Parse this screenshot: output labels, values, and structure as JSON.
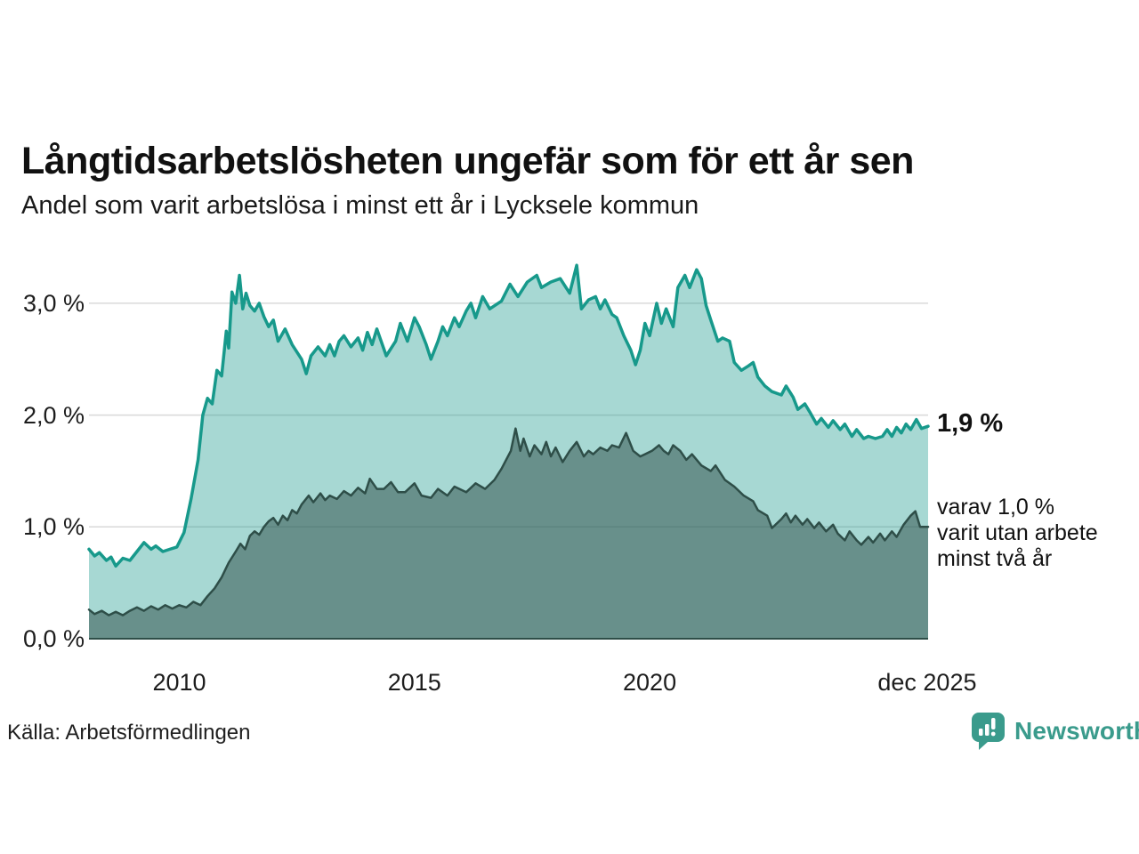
{
  "header": {
    "title": "Långtidsarbetslösheten ungefär som för ett år sen",
    "subtitle": "Andel som varit arbetslösa i minst ett år i Lycksele kommun"
  },
  "annotations": {
    "latest_total": "1,9 %",
    "latest_sub_lines": [
      "varav 1,0 %",
      "varit utan arbete",
      "minst två år"
    ]
  },
  "footer": {
    "source": "Källa: Arbetsförmedlingen",
    "brand": "Newsworthy"
  },
  "colors": {
    "line_total": "#17998b",
    "fill_total": "rgba(23,153,139,0.38)",
    "line_twoyear": "#2e4e48",
    "fill_twoyear": "rgba(46,78,72,0.52)",
    "gridline": "#d9d9d9",
    "baseline": "#2e4e48",
    "brand_teal": "#3a9b8c"
  },
  "chart_data": {
    "type": "area",
    "title": "Långtidsarbetslösheten ungefär som för ett år sen",
    "subtitle": "Andel som varit arbetslösa i minst ett år i Lycksele kommun",
    "unit": "%",
    "x_axis": {
      "ticks": [
        {
          "t": 2010,
          "label": "2010"
        },
        {
          "t": 2015,
          "label": "2015"
        },
        {
          "t": 2020,
          "label": "2020"
        },
        {
          "t": 2025.9,
          "label": "dec 2025"
        }
      ],
      "range": [
        2008.08,
        2025.92
      ]
    },
    "y_axis": {
      "ticks": [
        {
          "v": 3,
          "label": "3,0 %"
        },
        {
          "v": 2,
          "label": "2,0 %"
        },
        {
          "v": 1,
          "label": "1,0 %"
        },
        {
          "v": 0,
          "label": "0,0 %"
        }
      ],
      "range": [
        0,
        3.5
      ],
      "grid": true
    },
    "legend_position": "none",
    "series": [
      {
        "name": "Andel arbetslösa minst ett år",
        "end_label": "1,9 %",
        "end_value": 1.9,
        "points": [
          [
            2008.08,
            0.8
          ],
          [
            2008.2,
            0.74
          ],
          [
            2008.3,
            0.77
          ],
          [
            2008.45,
            0.7
          ],
          [
            2008.55,
            0.73
          ],
          [
            2008.65,
            0.65
          ],
          [
            2008.8,
            0.72
          ],
          [
            2008.95,
            0.7
          ],
          [
            2009.1,
            0.78
          ],
          [
            2009.25,
            0.86
          ],
          [
            2009.4,
            0.8
          ],
          [
            2009.5,
            0.83
          ],
          [
            2009.65,
            0.78
          ],
          [
            2009.8,
            0.8
          ],
          [
            2009.95,
            0.82
          ],
          [
            2010.1,
            0.95
          ],
          [
            2010.25,
            1.25
          ],
          [
            2010.4,
            1.6
          ],
          [
            2010.5,
            2.0
          ],
          [
            2010.6,
            2.15
          ],
          [
            2010.7,
            2.1
          ],
          [
            2010.8,
            2.4
          ],
          [
            2010.9,
            2.35
          ],
          [
            2011.0,
            2.75
          ],
          [
            2011.05,
            2.6
          ],
          [
            2011.12,
            3.1
          ],
          [
            2011.2,
            3.0
          ],
          [
            2011.28,
            3.25
          ],
          [
            2011.35,
            2.95
          ],
          [
            2011.42,
            3.09
          ],
          [
            2011.5,
            2.98
          ],
          [
            2011.6,
            2.93
          ],
          [
            2011.7,
            3.0
          ],
          [
            2011.8,
            2.88
          ],
          [
            2011.9,
            2.79
          ],
          [
            2012.0,
            2.85
          ],
          [
            2012.1,
            2.66
          ],
          [
            2012.25,
            2.77
          ],
          [
            2012.4,
            2.63
          ],
          [
            2012.6,
            2.5
          ],
          [
            2012.7,
            2.37
          ],
          [
            2012.8,
            2.53
          ],
          [
            2012.95,
            2.61
          ],
          [
            2013.1,
            2.53
          ],
          [
            2013.2,
            2.63
          ],
          [
            2013.3,
            2.53
          ],
          [
            2013.4,
            2.66
          ],
          [
            2013.5,
            2.71
          ],
          [
            2013.65,
            2.61
          ],
          [
            2013.8,
            2.69
          ],
          [
            2013.9,
            2.58
          ],
          [
            2014.0,
            2.74
          ],
          [
            2014.1,
            2.63
          ],
          [
            2014.2,
            2.77
          ],
          [
            2014.4,
            2.53
          ],
          [
            2014.6,
            2.66
          ],
          [
            2014.7,
            2.82
          ],
          [
            2014.85,
            2.66
          ],
          [
            2015.0,
            2.87
          ],
          [
            2015.1,
            2.79
          ],
          [
            2015.25,
            2.63
          ],
          [
            2015.35,
            2.5
          ],
          [
            2015.5,
            2.66
          ],
          [
            2015.6,
            2.79
          ],
          [
            2015.7,
            2.71
          ],
          [
            2015.85,
            2.87
          ],
          [
            2015.95,
            2.79
          ],
          [
            2016.1,
            2.93
          ],
          [
            2016.2,
            3.0
          ],
          [
            2016.3,
            2.87
          ],
          [
            2016.45,
            3.06
          ],
          [
            2016.6,
            2.95
          ],
          [
            2016.85,
            3.02
          ],
          [
            2017.03,
            3.17
          ],
          [
            2017.2,
            3.06
          ],
          [
            2017.4,
            3.19
          ],
          [
            2017.6,
            3.25
          ],
          [
            2017.7,
            3.14
          ],
          [
            2017.9,
            3.19
          ],
          [
            2018.1,
            3.22
          ],
          [
            2018.3,
            3.09
          ],
          [
            2018.45,
            3.34
          ],
          [
            2018.55,
            2.95
          ],
          [
            2018.7,
            3.03
          ],
          [
            2018.85,
            3.06
          ],
          [
            2018.95,
            2.95
          ],
          [
            2019.05,
            3.03
          ],
          [
            2019.2,
            2.9
          ],
          [
            2019.3,
            2.87
          ],
          [
            2019.45,
            2.71
          ],
          [
            2019.6,
            2.58
          ],
          [
            2019.7,
            2.45
          ],
          [
            2019.8,
            2.58
          ],
          [
            2019.9,
            2.82
          ],
          [
            2020.0,
            2.71
          ],
          [
            2020.15,
            3.0
          ],
          [
            2020.25,
            2.82
          ],
          [
            2020.35,
            2.95
          ],
          [
            2020.5,
            2.79
          ],
          [
            2020.6,
            3.14
          ],
          [
            2020.75,
            3.25
          ],
          [
            2020.85,
            3.14
          ],
          [
            2021.0,
            3.3
          ],
          [
            2021.1,
            3.22
          ],
          [
            2021.2,
            2.98
          ],
          [
            2021.3,
            2.85
          ],
          [
            2021.45,
            2.66
          ],
          [
            2021.55,
            2.69
          ],
          [
            2021.7,
            2.66
          ],
          [
            2021.8,
            2.47
          ],
          [
            2021.95,
            2.4
          ],
          [
            2022.1,
            2.44
          ],
          [
            2022.2,
            2.47
          ],
          [
            2022.3,
            2.34
          ],
          [
            2022.45,
            2.26
          ],
          [
            2022.6,
            2.21
          ],
          [
            2022.8,
            2.18
          ],
          [
            2022.9,
            2.26
          ],
          [
            2023.05,
            2.16
          ],
          [
            2023.15,
            2.05
          ],
          [
            2023.3,
            2.1
          ],
          [
            2023.4,
            2.03
          ],
          [
            2023.55,
            1.92
          ],
          [
            2023.65,
            1.97
          ],
          [
            2023.8,
            1.89
          ],
          [
            2023.9,
            1.95
          ],
          [
            2024.05,
            1.87
          ],
          [
            2024.15,
            1.92
          ],
          [
            2024.3,
            1.81
          ],
          [
            2024.4,
            1.87
          ],
          [
            2024.55,
            1.79
          ],
          [
            2024.65,
            1.81
          ],
          [
            2024.8,
            1.79
          ],
          [
            2024.95,
            1.81
          ],
          [
            2025.05,
            1.87
          ],
          [
            2025.15,
            1.81
          ],
          [
            2025.25,
            1.89
          ],
          [
            2025.35,
            1.84
          ],
          [
            2025.45,
            1.92
          ],
          [
            2025.55,
            1.87
          ],
          [
            2025.67,
            1.96
          ],
          [
            2025.78,
            1.88
          ],
          [
            2025.92,
            1.9
          ]
        ]
      },
      {
        "name": "varav utan arbete minst två år",
        "end_label": "varav 1,0 % varit utan arbete minst två år",
        "end_value": 1.0,
        "points": [
          [
            2008.08,
            0.26
          ],
          [
            2008.2,
            0.22
          ],
          [
            2008.35,
            0.25
          ],
          [
            2008.5,
            0.21
          ],
          [
            2008.65,
            0.24
          ],
          [
            2008.8,
            0.21
          ],
          [
            2008.95,
            0.25
          ],
          [
            2009.1,
            0.28
          ],
          [
            2009.25,
            0.25
          ],
          [
            2009.4,
            0.29
          ],
          [
            2009.55,
            0.26
          ],
          [
            2009.7,
            0.3
          ],
          [
            2009.85,
            0.27
          ],
          [
            2010.0,
            0.3
          ],
          [
            2010.15,
            0.28
          ],
          [
            2010.3,
            0.33
          ],
          [
            2010.45,
            0.3
          ],
          [
            2010.6,
            0.38
          ],
          [
            2010.75,
            0.45
          ],
          [
            2010.9,
            0.55
          ],
          [
            2011.05,
            0.68
          ],
          [
            2011.2,
            0.78
          ],
          [
            2011.3,
            0.85
          ],
          [
            2011.4,
            0.8
          ],
          [
            2011.5,
            0.92
          ],
          [
            2011.6,
            0.96
          ],
          [
            2011.7,
            0.93
          ],
          [
            2011.8,
            1.0
          ],
          [
            2011.9,
            1.05
          ],
          [
            2012.0,
            1.08
          ],
          [
            2012.1,
            1.02
          ],
          [
            2012.2,
            1.1
          ],
          [
            2012.3,
            1.06
          ],
          [
            2012.4,
            1.15
          ],
          [
            2012.5,
            1.12
          ],
          [
            2012.6,
            1.2
          ],
          [
            2012.75,
            1.28
          ],
          [
            2012.85,
            1.22
          ],
          [
            2013.0,
            1.3
          ],
          [
            2013.1,
            1.24
          ],
          [
            2013.2,
            1.28
          ],
          [
            2013.35,
            1.25
          ],
          [
            2013.5,
            1.32
          ],
          [
            2013.65,
            1.28
          ],
          [
            2013.8,
            1.35
          ],
          [
            2013.95,
            1.3
          ],
          [
            2014.05,
            1.43
          ],
          [
            2014.2,
            1.34
          ],
          [
            2014.35,
            1.34
          ],
          [
            2014.5,
            1.4
          ],
          [
            2014.65,
            1.31
          ],
          [
            2014.8,
            1.31
          ],
          [
            2015.0,
            1.39
          ],
          [
            2015.15,
            1.28
          ],
          [
            2015.35,
            1.26
          ],
          [
            2015.5,
            1.34
          ],
          [
            2015.7,
            1.28
          ],
          [
            2015.85,
            1.36
          ],
          [
            2016.1,
            1.31
          ],
          [
            2016.3,
            1.39
          ],
          [
            2016.5,
            1.34
          ],
          [
            2016.7,
            1.42
          ],
          [
            2016.85,
            1.52
          ],
          [
            2017.05,
            1.68
          ],
          [
            2017.15,
            1.88
          ],
          [
            2017.25,
            1.68
          ],
          [
            2017.32,
            1.79
          ],
          [
            2017.45,
            1.63
          ],
          [
            2017.55,
            1.73
          ],
          [
            2017.7,
            1.65
          ],
          [
            2017.8,
            1.76
          ],
          [
            2017.9,
            1.63
          ],
          [
            2018.0,
            1.71
          ],
          [
            2018.15,
            1.58
          ],
          [
            2018.3,
            1.68
          ],
          [
            2018.45,
            1.76
          ],
          [
            2018.6,
            1.63
          ],
          [
            2018.7,
            1.68
          ],
          [
            2018.8,
            1.65
          ],
          [
            2018.95,
            1.71
          ],
          [
            2019.1,
            1.68
          ],
          [
            2019.2,
            1.73
          ],
          [
            2019.35,
            1.71
          ],
          [
            2019.5,
            1.84
          ],
          [
            2019.65,
            1.68
          ],
          [
            2019.8,
            1.63
          ],
          [
            2019.9,
            1.65
          ],
          [
            2020.05,
            1.68
          ],
          [
            2020.2,
            1.73
          ],
          [
            2020.3,
            1.68
          ],
          [
            2020.4,
            1.65
          ],
          [
            2020.5,
            1.73
          ],
          [
            2020.65,
            1.68
          ],
          [
            2020.78,
            1.6
          ],
          [
            2020.9,
            1.65
          ],
          [
            2021.1,
            1.55
          ],
          [
            2021.3,
            1.5
          ],
          [
            2021.4,
            1.55
          ],
          [
            2021.6,
            1.42
          ],
          [
            2021.8,
            1.36
          ],
          [
            2022.0,
            1.28
          ],
          [
            2022.2,
            1.23
          ],
          [
            2022.3,
            1.15
          ],
          [
            2022.5,
            1.1
          ],
          [
            2022.6,
            0.99
          ],
          [
            2022.8,
            1.07
          ],
          [
            2022.9,
            1.12
          ],
          [
            2023.0,
            1.04
          ],
          [
            2023.1,
            1.1
          ],
          [
            2023.25,
            1.02
          ],
          [
            2023.35,
            1.07
          ],
          [
            2023.5,
            0.99
          ],
          [
            2023.6,
            1.04
          ],
          [
            2023.75,
            0.96
          ],
          [
            2023.9,
            1.02
          ],
          [
            2024.0,
            0.94
          ],
          [
            2024.15,
            0.88
          ],
          [
            2024.25,
            0.96
          ],
          [
            2024.4,
            0.88
          ],
          [
            2024.5,
            0.84
          ],
          [
            2024.65,
            0.91
          ],
          [
            2024.75,
            0.86
          ],
          [
            2024.9,
            0.94
          ],
          [
            2025.0,
            0.88
          ],
          [
            2025.15,
            0.96
          ],
          [
            2025.25,
            0.91
          ],
          [
            2025.4,
            1.02
          ],
          [
            2025.55,
            1.1
          ],
          [
            2025.65,
            1.14
          ],
          [
            2025.75,
            1.0
          ],
          [
            2025.92,
            1.0
          ]
        ]
      }
    ]
  }
}
